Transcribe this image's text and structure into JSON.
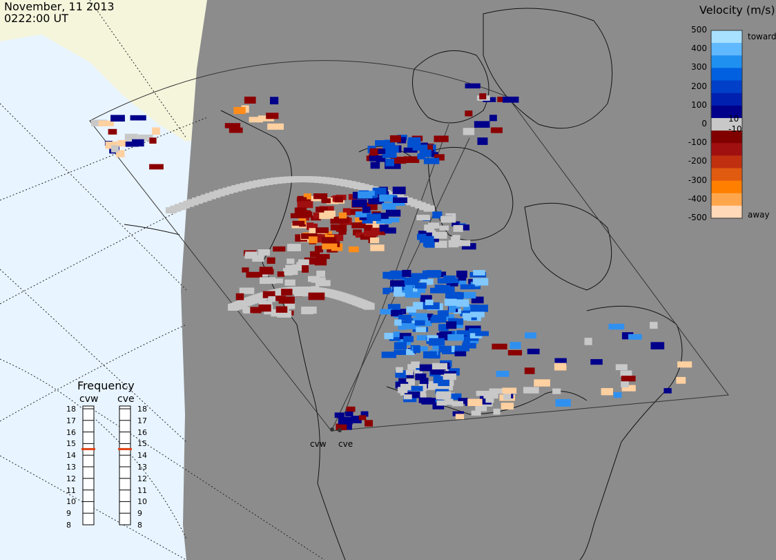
{
  "header": {
    "date": "November, 11 2013",
    "time": "0222:00 UT"
  },
  "colorbar": {
    "title": "Velocity (m/s)",
    "ticks": [
      "500",
      "400",
      "300",
      "200",
      "100",
      "0",
      "-100",
      "-200",
      "-300",
      "-400",
      "-500"
    ],
    "inner_ticks": [
      "10",
      "-10"
    ],
    "toward_label": "toward",
    "away_label": "away",
    "colors": [
      "#ffd9b8",
      "#ffa64d",
      "#ff7f00",
      "#e05a10",
      "#c03010",
      "#a01010",
      "#800000",
      "#c8c8c8",
      "#00008b",
      "#0020b0",
      "#0040c8",
      "#0060e0",
      "#2090f0",
      "#60b8ff",
      "#a8e0ff"
    ]
  },
  "frequency_panel": {
    "title": "Frequency",
    "radars": [
      {
        "name": "cvw",
        "selected_mhz": 15
      },
      {
        "name": "cve",
        "selected_mhz": 15
      }
    ],
    "scale": [
      "18",
      "17",
      "16",
      "15",
      "14",
      "13",
      "12",
      "11",
      "10",
      "9",
      "8"
    ],
    "indicator_color": "#e04010"
  },
  "sites": [
    {
      "name": "cvw"
    },
    {
      "name": "cve"
    }
  ],
  "map": {
    "background_land": "#8c8c8c",
    "ocean": "#e8f4ff",
    "outline": "#555555"
  }
}
